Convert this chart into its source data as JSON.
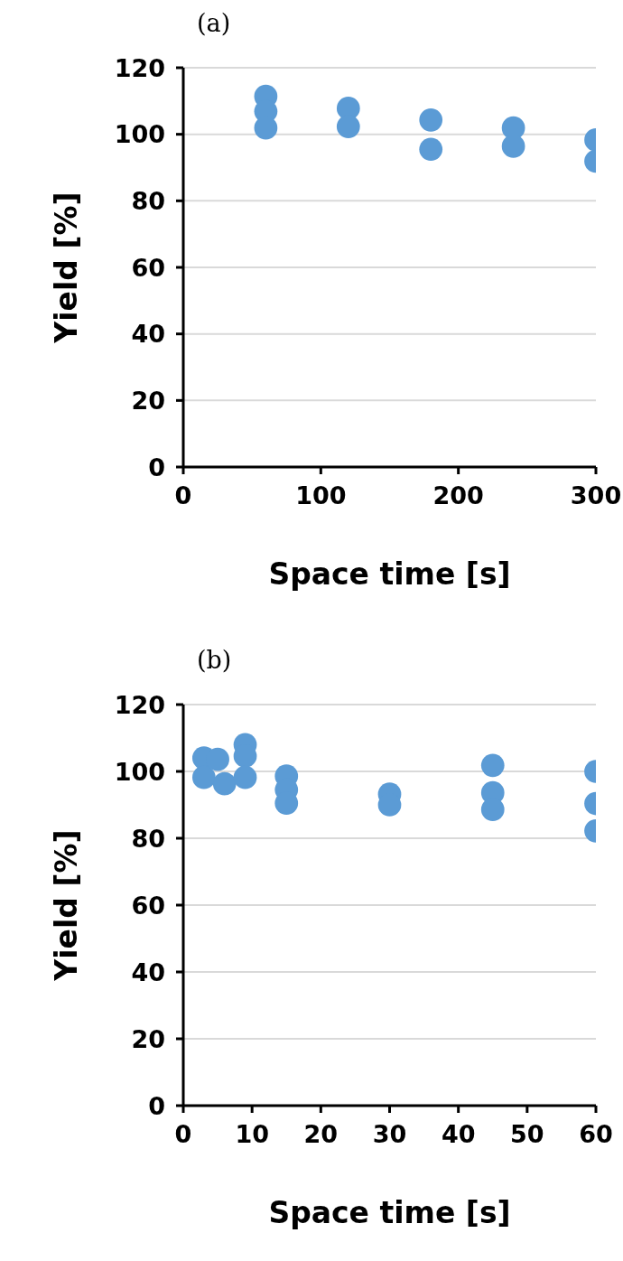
{
  "chart_data": [
    {
      "type": "scatter",
      "title": "(a)",
      "xlabel": "Space time [s]",
      "ylabel": "Yield [%]",
      "x": [
        60,
        60,
        60,
        120,
        120,
        180,
        180,
        240,
        240,
        300,
        300
      ],
      "values": [
        111.4,
        106.9,
        101.9,
        107.8,
        102.3,
        104.3,
        95.5,
        101.9,
        96.4,
        98.3,
        91.9
      ],
      "color": "#5b9bd5",
      "xlim": [
        0,
        300
      ],
      "xticks": [
        0,
        100,
        200,
        300
      ],
      "ylim": [
        0,
        120
      ],
      "yticks": [
        0,
        20,
        40,
        60,
        80,
        100,
        120
      ],
      "grid": "y",
      "marker": "circle"
    },
    {
      "type": "scatter",
      "title": "(b)",
      "xlabel": "Space time [s]",
      "ylabel": "Yield [%]",
      "x": [
        3,
        3,
        5,
        6,
        9,
        9,
        9,
        15,
        15,
        15,
        30,
        30,
        45,
        45,
        45,
        60,
        60,
        60
      ],
      "values": [
        104,
        98.2,
        103.6,
        96.3,
        108,
        104.6,
        98.2,
        98.6,
        94.5,
        90.5,
        93.2,
        90,
        101.8,
        93.6,
        88.6,
        100,
        90.4,
        82.2
      ],
      "color": "#5b9bd5",
      "xlim": [
        0,
        60
      ],
      "xticks": [
        0,
        10,
        20,
        30,
        40,
        50,
        60
      ],
      "ylim": [
        0,
        120
      ],
      "yticks": [
        0,
        20,
        40,
        60,
        80,
        100,
        120
      ],
      "grid": "y",
      "marker": "circle"
    }
  ]
}
